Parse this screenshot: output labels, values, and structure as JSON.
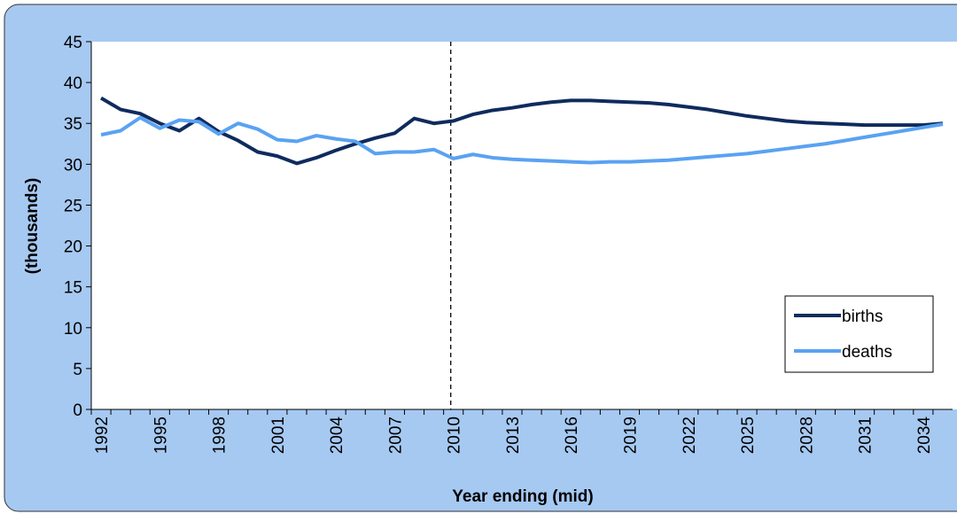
{
  "chart_data": {
    "type": "line",
    "x_label": "Year ending (mid)",
    "y_label": "(thousands)",
    "categories": [
      "1992",
      null,
      null,
      "1995",
      null,
      null,
      "1998",
      null,
      null,
      "2001",
      null,
      null,
      "2004",
      null,
      null,
      "2007",
      null,
      null,
      "2010",
      null,
      null,
      "2013",
      null,
      null,
      "2016",
      null,
      null,
      "2019",
      null,
      null,
      "2022",
      null,
      null,
      "2025",
      null,
      null,
      "2028",
      null,
      null,
      "2031",
      null,
      null,
      "2034",
      null
    ],
    "series": [
      {
        "name": "births",
        "color": "#0f2b5e",
        "values": [
          38.1,
          36.7,
          36.2,
          35.0,
          34.1,
          35.6,
          34.0,
          32.9,
          31.5,
          31.0,
          30.1,
          30.8,
          31.7,
          32.5,
          33.2,
          33.8,
          35.6,
          35.0,
          35.3,
          36.1,
          36.6,
          36.9,
          37.3,
          37.6,
          37.8,
          37.8,
          37.7,
          37.6,
          37.5,
          37.3,
          37.0,
          36.7,
          36.3,
          35.9,
          35.6,
          35.3,
          35.1,
          35.0,
          34.9,
          34.8,
          34.8,
          34.8,
          34.8,
          35.0
        ]
      },
      {
        "name": "deaths",
        "color": "#5aa2f2",
        "values": [
          33.6,
          34.1,
          35.7,
          34.4,
          35.4,
          35.2,
          33.7,
          35.0,
          34.3,
          33.0,
          32.8,
          33.5,
          33.1,
          32.8,
          31.3,
          31.5,
          31.5,
          31.8,
          30.7,
          31.2,
          30.8,
          30.6,
          30.5,
          30.4,
          30.3,
          30.2,
          30.3,
          30.3,
          30.4,
          30.5,
          30.7,
          30.9,
          31.1,
          31.3,
          31.6,
          31.9,
          32.2,
          32.5,
          32.9,
          33.3,
          33.7,
          34.1,
          34.5,
          34.9
        ]
      }
    ],
    "ylim": [
      0,
      45
    ],
    "yticks": [
      0,
      5,
      10,
      15,
      20,
      25,
      30,
      35,
      40,
      45
    ],
    "reference_line": {
      "category": "2010",
      "style": "dashed"
    },
    "legend": "lower right"
  }
}
